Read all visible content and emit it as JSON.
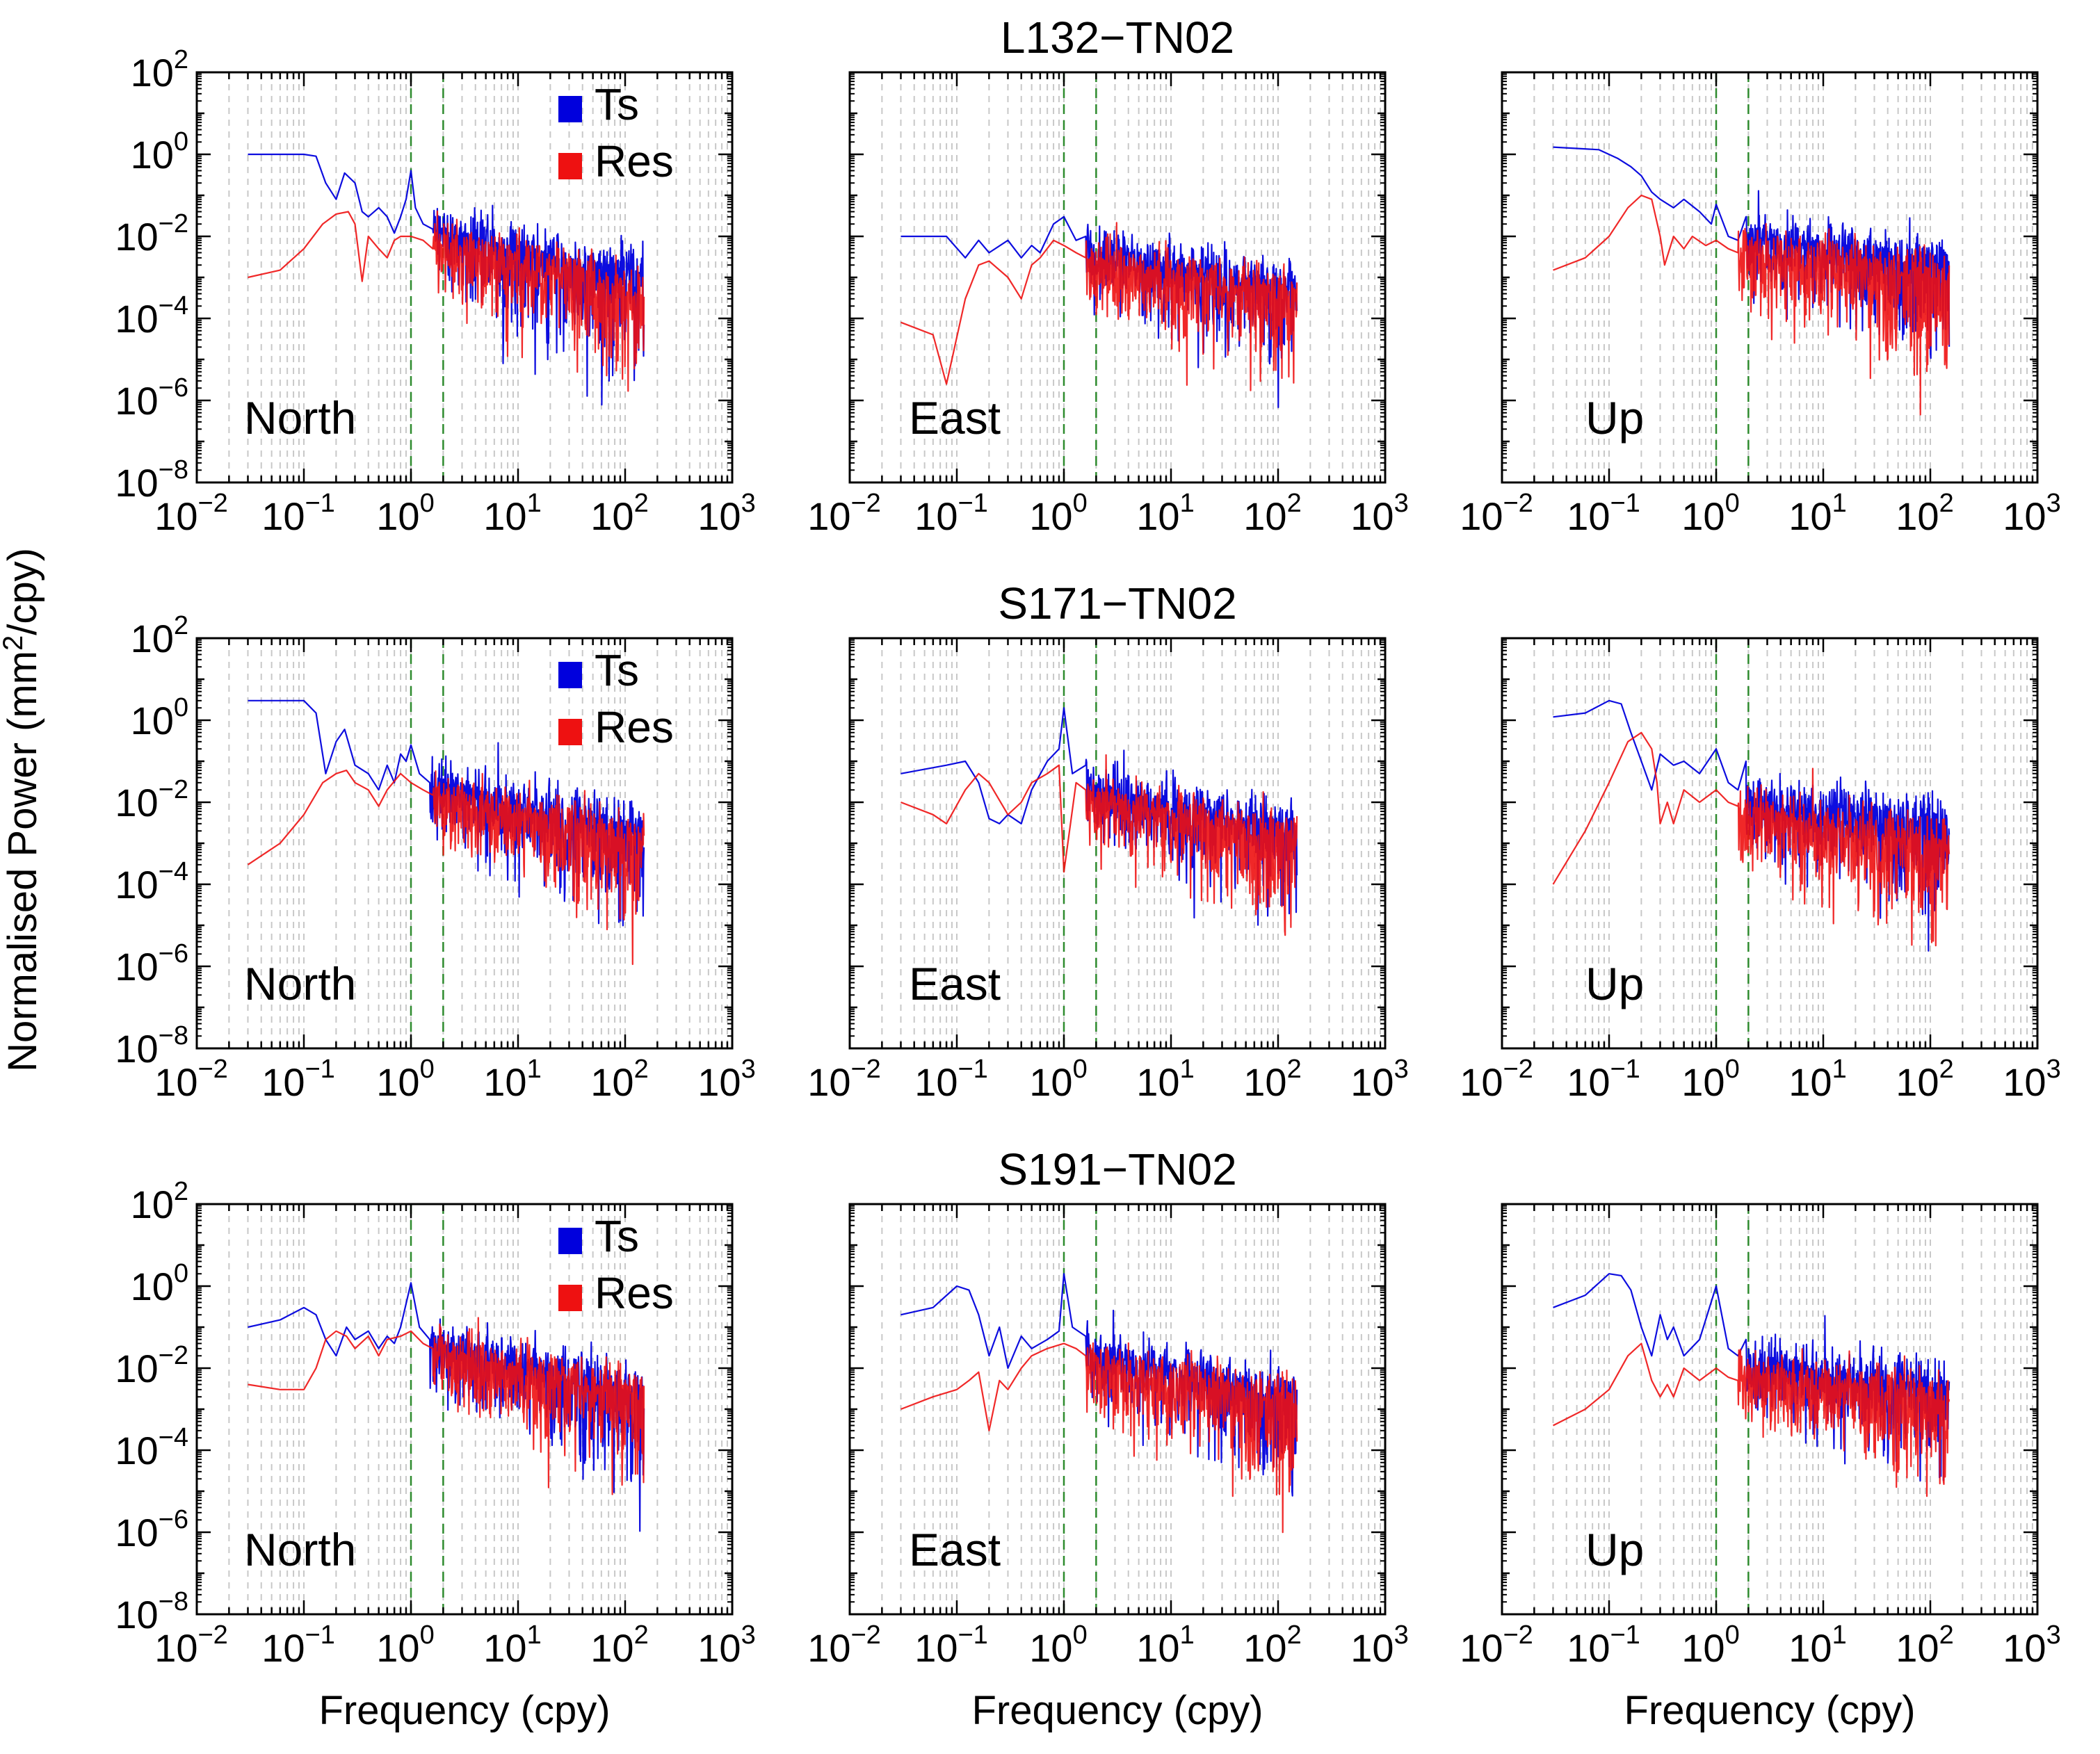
{
  "figure": {
    "ylabel": "Normalised Power (mm²/cpy)",
    "ylabel_unit_base": "Normalised Power (mm",
    "ylabel_unit_sup": "2",
    "ylabel_unit_tail": "/cpy)",
    "xlabel": "Frequency (cpy)"
  },
  "chart_data": {
    "type": "line",
    "scale": {
      "x": "log",
      "y": "log"
    },
    "xlim": [
      0.01,
      1000
    ],
    "ylim": [
      1e-08,
      100
    ],
    "x_ticks": [
      -2,
      -1,
      0,
      1,
      2,
      3
    ],
    "y_ticks": [
      -8,
      -6,
      -4,
      -2,
      0,
      2
    ],
    "tick_base": "10",
    "grid": "vertical dashed gray at minor/major x decades",
    "reference_lines": {
      "x": [
        1,
        2
      ],
      "style": "dashed",
      "color": "#2e8b2e"
    },
    "legend": {
      "entries": [
        {
          "name": "Ts",
          "color": "#0000dd"
        },
        {
          "name": "Res",
          "color": "#ee1111"
        }
      ],
      "placement": "top-right",
      "shown_in": "North column"
    },
    "rows": [
      {
        "title": "L132−TN02",
        "panels": [
          {
            "component": "North",
            "series": [
              {
                "name": "Ts",
                "low_x": [
                  0.03,
                  0.1,
                  0.13,
                  0.16,
                  0.2,
                  0.24,
                  0.3,
                  0.35,
                  0.4,
                  0.5,
                  0.6,
                  0.7,
                  0.8,
                  0.9,
                  1.0,
                  1.1,
                  1.3,
                  1.6
                ],
                "low_y": [
                  1.0,
                  1.0,
                  0.9,
                  0.2,
                  0.08,
                  0.35,
                  0.2,
                  0.04,
                  0.03,
                  0.05,
                  0.03,
                  0.012,
                  0.03,
                  0.08,
                  0.4,
                  0.05,
                  0.02,
                  0.015
                ],
                "hf_start": 0.012,
                "hf_slope": -0.6,
                "hf_spread": 1.2
              },
              {
                "name": "Res",
                "low_x": [
                  0.03,
                  0.06,
                  0.1,
                  0.15,
                  0.2,
                  0.26,
                  0.3,
                  0.35,
                  0.4,
                  0.5,
                  0.6,
                  0.7,
                  0.8,
                  1.0,
                  1.3,
                  1.6
                ],
                "low_y": [
                  0.001,
                  0.0015,
                  0.005,
                  0.02,
                  0.035,
                  0.04,
                  0.02,
                  0.0008,
                  0.01,
                  0.005,
                  0.003,
                  0.008,
                  0.01,
                  0.01,
                  0.008,
                  0.005
                ],
                "hf_start": 0.005,
                "hf_slope": -0.6,
                "hf_spread": 1.1
              }
            ]
          },
          {
            "component": "East",
            "series": [
              {
                "name": "Ts",
                "low_x": [
                  0.03,
                  0.08,
                  0.12,
                  0.16,
                  0.2,
                  0.3,
                  0.4,
                  0.5,
                  0.6,
                  0.8,
                  1.0,
                  1.3,
                  1.6
                ],
                "low_y": [
                  0.01,
                  0.01,
                  0.003,
                  0.008,
                  0.004,
                  0.008,
                  0.003,
                  0.006,
                  0.004,
                  0.02,
                  0.03,
                  0.008,
                  0.01
                ],
                "hf_start": 0.004,
                "hf_slope": -0.5,
                "hf_spread": 1.0
              },
              {
                "name": "Res",
                "low_x": [
                  0.03,
                  0.06,
                  0.08,
                  0.12,
                  0.16,
                  0.2,
                  0.3,
                  0.4,
                  0.5,
                  0.6,
                  0.8,
                  1.0,
                  1.3,
                  1.6
                ],
                "low_y": [
                  8e-05,
                  4e-05,
                  2.5e-06,
                  0.0003,
                  0.002,
                  0.0025,
                  0.001,
                  0.0003,
                  0.002,
                  0.003,
                  0.008,
                  0.006,
                  0.004,
                  0.003
                ],
                "hf_start": 0.002,
                "hf_slope": -0.45,
                "hf_spread": 1.0
              }
            ]
          },
          {
            "component": "Up",
            "series": [
              {
                "name": "Ts",
                "low_x": [
                  0.03,
                  0.08,
                  0.12,
                  0.16,
                  0.2,
                  0.25,
                  0.3,
                  0.4,
                  0.5,
                  0.7,
                  0.9,
                  1.0,
                  1.3,
                  1.6,
                  1.9
                ],
                "low_y": [
                  1.5,
                  1.3,
                  0.8,
                  0.5,
                  0.3,
                  0.12,
                  0.08,
                  0.05,
                  0.08,
                  0.04,
                  0.02,
                  0.06,
                  0.01,
                  0.008,
                  0.03
                ],
                "hf_start": 0.008,
                "hf_slope": -0.35,
                "hf_spread": 1.0
              },
              {
                "name": "Res",
                "low_x": [
                  0.03,
                  0.06,
                  0.1,
                  0.15,
                  0.2,
                  0.25,
                  0.3,
                  0.33,
                  0.4,
                  0.5,
                  0.6,
                  0.8,
                  1.0,
                  1.3,
                  1.6
                ],
                "low_y": [
                  0.0015,
                  0.003,
                  0.01,
                  0.05,
                  0.1,
                  0.08,
                  0.01,
                  0.002,
                  0.01,
                  0.005,
                  0.01,
                  0.006,
                  0.008,
                  0.005,
                  0.004
                ],
                "hf_start": 0.004,
                "hf_slope": -0.4,
                "hf_spread": 1.1
              }
            ]
          }
        ]
      },
      {
        "title": "S171−TN02",
        "panels": [
          {
            "component": "North",
            "series": [
              {
                "name": "Ts",
                "low_x": [
                  0.03,
                  0.1,
                  0.13,
                  0.16,
                  0.2,
                  0.24,
                  0.3,
                  0.4,
                  0.5,
                  0.6,
                  0.7,
                  0.8,
                  0.9,
                  1.0,
                  1.2,
                  1.5
                ],
                "low_y": [
                  3.0,
                  3.0,
                  1.5,
                  0.05,
                  0.3,
                  0.6,
                  0.08,
                  0.05,
                  0.02,
                  0.08,
                  0.03,
                  0.15,
                  0.1,
                  0.25,
                  0.05,
                  0.03
                ],
                "hf_start": 0.02,
                "hf_slope": -0.55,
                "hf_spread": 1.1
              },
              {
                "name": "Res",
                "low_x": [
                  0.03,
                  0.06,
                  0.1,
                  0.15,
                  0.2,
                  0.25,
                  0.3,
                  0.4,
                  0.5,
                  0.6,
                  0.8,
                  1.0,
                  1.3,
                  1.6
                ],
                "low_y": [
                  0.0003,
                  0.001,
                  0.005,
                  0.03,
                  0.05,
                  0.06,
                  0.03,
                  0.02,
                  0.008,
                  0.02,
                  0.05,
                  0.03,
                  0.02,
                  0.015
                ],
                "hf_start": 0.01,
                "hf_slope": -0.55,
                "hf_spread": 1.0
              }
            ]
          },
          {
            "component": "East",
            "series": [
              {
                "name": "Ts",
                "low_x": [
                  0.03,
                  0.08,
                  0.12,
                  0.16,
                  0.2,
                  0.25,
                  0.3,
                  0.4,
                  0.5,
                  0.7,
                  0.9,
                  1.0,
                  1.2,
                  1.6
                ],
                "low_y": [
                  0.05,
                  0.08,
                  0.1,
                  0.03,
                  0.004,
                  0.003,
                  0.005,
                  0.003,
                  0.02,
                  0.1,
                  0.2,
                  2.0,
                  0.05,
                  0.08
                ],
                "hf_start": 0.02,
                "hf_slope": -0.55,
                "hf_spread": 1.0
              },
              {
                "name": "Res",
                "low_x": [
                  0.03,
                  0.06,
                  0.08,
                  0.12,
                  0.16,
                  0.2,
                  0.3,
                  0.4,
                  0.5,
                  0.7,
                  0.9,
                  1.0,
                  1.3,
                  1.6
                ],
                "low_y": [
                  0.01,
                  0.005,
                  0.003,
                  0.02,
                  0.05,
                  0.03,
                  0.005,
                  0.01,
                  0.03,
                  0.05,
                  0.08,
                  0.0002,
                  0.03,
                  0.02
                ],
                "hf_start": 0.01,
                "hf_slope": -0.5,
                "hf_spread": 1.0
              }
            ]
          },
          {
            "component": "Up",
            "series": [
              {
                "name": "Ts",
                "low_x": [
                  0.03,
                  0.06,
                  0.1,
                  0.13,
                  0.16,
                  0.2,
                  0.25,
                  0.3,
                  0.4,
                  0.5,
                  0.7,
                  1.0,
                  1.3,
                  1.6,
                  1.9
                ],
                "low_y": [
                  1.2,
                  1.5,
                  3.0,
                  2.5,
                  0.5,
                  0.1,
                  0.02,
                  0.15,
                  0.08,
                  0.1,
                  0.05,
                  0.2,
                  0.03,
                  0.02,
                  0.1
                ],
                "hf_start": 0.01,
                "hf_slope": -0.35,
                "hf_spread": 1.0
              },
              {
                "name": "Res",
                "low_x": [
                  0.03,
                  0.06,
                  0.1,
                  0.15,
                  0.2,
                  0.25,
                  0.28,
                  0.3,
                  0.35,
                  0.4,
                  0.5,
                  0.7,
                  1.0,
                  1.3,
                  1.6
                ],
                "low_y": [
                  0.0001,
                  0.002,
                  0.03,
                  0.3,
                  0.5,
                  0.2,
                  0.03,
                  0.003,
                  0.01,
                  0.003,
                  0.02,
                  0.01,
                  0.02,
                  0.01,
                  0.008
                ],
                "hf_start": 0.004,
                "hf_slope": -0.4,
                "hf_spread": 1.1
              }
            ]
          }
        ]
      },
      {
        "title": "S191−TN02",
        "panels": [
          {
            "component": "North",
            "series": [
              {
                "name": "Ts",
                "low_x": [
                  0.03,
                  0.06,
                  0.1,
                  0.13,
                  0.16,
                  0.2,
                  0.25,
                  0.3,
                  0.4,
                  0.5,
                  0.6,
                  0.7,
                  0.8,
                  1.0,
                  1.2,
                  1.5
                ],
                "low_y": [
                  0.1,
                  0.15,
                  0.3,
                  0.2,
                  0.05,
                  0.02,
                  0.1,
                  0.05,
                  0.08,
                  0.03,
                  0.06,
                  0.04,
                  0.1,
                  1.2,
                  0.1,
                  0.05
                ],
                "hf_start": 0.03,
                "hf_slope": -0.6,
                "hf_spread": 1.1
              },
              {
                "name": "Res",
                "low_x": [
                  0.03,
                  0.06,
                  0.1,
                  0.13,
                  0.16,
                  0.2,
                  0.25,
                  0.3,
                  0.4,
                  0.5,
                  0.6,
                  0.8,
                  1.0,
                  1.3,
                  1.6
                ],
                "low_y": [
                  0.004,
                  0.003,
                  0.003,
                  0.01,
                  0.05,
                  0.08,
                  0.06,
                  0.03,
                  0.06,
                  0.02,
                  0.05,
                  0.06,
                  0.08,
                  0.04,
                  0.03
                ],
                "hf_start": 0.02,
                "hf_slope": -0.55,
                "hf_spread": 1.0
              }
            ]
          },
          {
            "component": "East",
            "series": [
              {
                "name": "Ts",
                "low_x": [
                  0.03,
                  0.06,
                  0.1,
                  0.13,
                  0.16,
                  0.2,
                  0.25,
                  0.3,
                  0.4,
                  0.5,
                  0.7,
                  0.9,
                  1.0,
                  1.2,
                  1.6
                ],
                "low_y": [
                  0.2,
                  0.3,
                  1.0,
                  0.8,
                  0.2,
                  0.02,
                  0.1,
                  0.01,
                  0.06,
                  0.03,
                  0.05,
                  0.08,
                  2.0,
                  0.1,
                  0.06
                ],
                "hf_start": 0.02,
                "hf_slope": -0.55,
                "hf_spread": 1.0
              },
              {
                "name": "Res",
                "low_x": [
                  0.03,
                  0.06,
                  0.1,
                  0.13,
                  0.16,
                  0.2,
                  0.25,
                  0.3,
                  0.4,
                  0.5,
                  0.7,
                  1.0,
                  1.3,
                  1.6
                ],
                "low_y": [
                  0.001,
                  0.002,
                  0.003,
                  0.005,
                  0.008,
                  0.0003,
                  0.005,
                  0.003,
                  0.01,
                  0.02,
                  0.03,
                  0.04,
                  0.03,
                  0.02
                ],
                "hf_start": 0.01,
                "hf_slope": -0.5,
                "hf_spread": 1.0
              }
            ]
          },
          {
            "component": "Up",
            "series": [
              {
                "name": "Ts",
                "low_x": [
                  0.03,
                  0.06,
                  0.1,
                  0.13,
                  0.16,
                  0.2,
                  0.25,
                  0.3,
                  0.35,
                  0.4,
                  0.5,
                  0.7,
                  1.0,
                  1.3,
                  1.6,
                  1.9
                ],
                "low_y": [
                  0.3,
                  0.6,
                  2.0,
                  1.8,
                  0.8,
                  0.1,
                  0.02,
                  0.2,
                  0.05,
                  0.1,
                  0.02,
                  0.05,
                  1.0,
                  0.03,
                  0.02,
                  0.05
                ],
                "hf_start": 0.01,
                "hf_slope": -0.3,
                "hf_spread": 1.0
              },
              {
                "name": "Res",
                "low_x": [
                  0.03,
                  0.06,
                  0.1,
                  0.15,
                  0.2,
                  0.25,
                  0.3,
                  0.35,
                  0.4,
                  0.5,
                  0.7,
                  1.0,
                  1.3,
                  1.6
                ],
                "low_y": [
                  0.0004,
                  0.001,
                  0.003,
                  0.02,
                  0.04,
                  0.005,
                  0.002,
                  0.004,
                  0.002,
                  0.01,
                  0.005,
                  0.01,
                  0.006,
                  0.005
                ],
                "hf_start": 0.005,
                "hf_slope": -0.3,
                "hf_spread": 1.0
              }
            ]
          }
        ]
      }
    ]
  }
}
